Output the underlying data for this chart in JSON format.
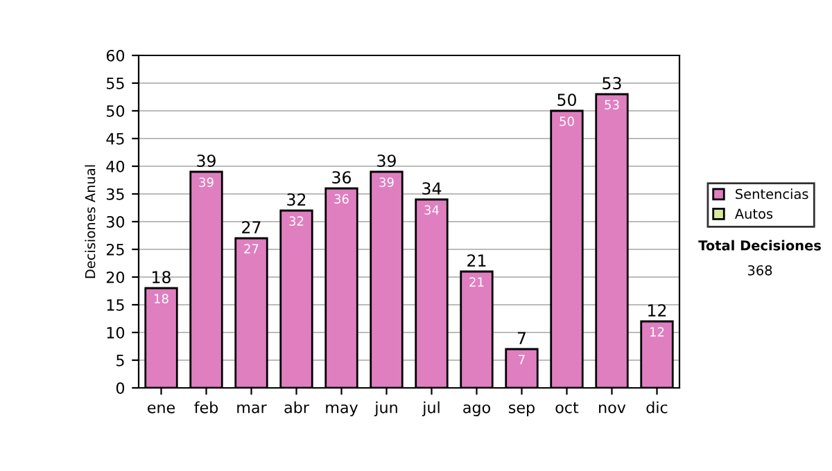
{
  "chart_data": {
    "type": "bar",
    "ylabel": "Decisiones Anual",
    "categories": [
      "ene",
      "feb",
      "mar",
      "abr",
      "may",
      "jun",
      "jul",
      "ago",
      "sep",
      "oct",
      "nov",
      "dic"
    ],
    "series": [
      {
        "name": "Sentencias",
        "color": "#df7fc0",
        "values": [
          18,
          39,
          27,
          32,
          36,
          39,
          34,
          21,
          7,
          50,
          53,
          12
        ],
        "value_labels": [
          "18",
          "39",
          "27",
          "32",
          "36",
          "39",
          "34",
          "21",
          "7",
          "50",
          "53",
          "12"
        ]
      },
      {
        "name": "Autos",
        "color": "#d8eaa0",
        "values": [
          null,
          null,
          null,
          null,
          null,
          null,
          null,
          null,
          null,
          null,
          null,
          null
        ]
      }
    ],
    "stacked": true,
    "totals": [
      "18",
      "39",
      "27",
      "32",
      "36",
      "39",
      "34",
      "21",
      "7",
      "50",
      "53",
      "12"
    ],
    "ylim": [
      0,
      60
    ],
    "yticks": [
      0,
      5,
      10,
      15,
      20,
      25,
      30,
      35,
      40,
      45,
      50,
      55,
      60
    ],
    "grid": "y",
    "legend": "right",
    "annotations": [
      "Total Decisiones",
      "368"
    ]
  }
}
